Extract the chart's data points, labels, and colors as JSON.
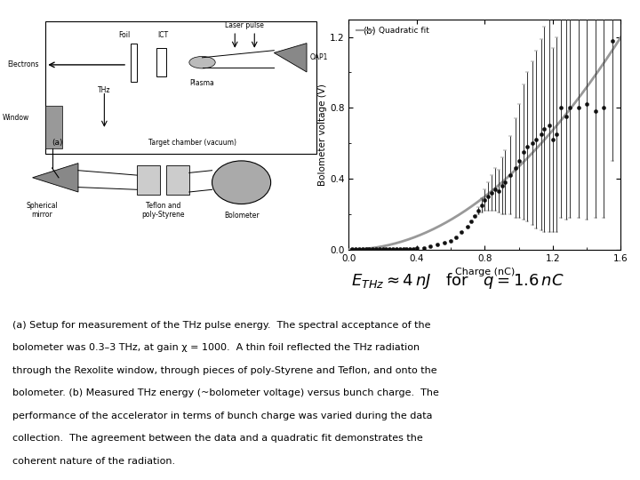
{
  "scatter_x": [
    0.02,
    0.04,
    0.06,
    0.08,
    0.1,
    0.12,
    0.14,
    0.16,
    0.18,
    0.2,
    0.22,
    0.24,
    0.26,
    0.28,
    0.3,
    0.32,
    0.34,
    0.36,
    0.38,
    0.4,
    0.44,
    0.48,
    0.52,
    0.56,
    0.6,
    0.63,
    0.66,
    0.7,
    0.72,
    0.74,
    0.76,
    0.78,
    0.8,
    0.82,
    0.84,
    0.86,
    0.88,
    0.9,
    0.92,
    0.95,
    0.98,
    1.0,
    1.03,
    1.05,
    1.08,
    1.1,
    1.13,
    1.15,
    1.18,
    1.2,
    1.22,
    1.25,
    1.28,
    1.3,
    1.35,
    1.4,
    1.45,
    1.5,
    1.55
  ],
  "scatter_y": [
    0.005,
    0.005,
    0.005,
    0.005,
    0.005,
    0.005,
    0.005,
    0.005,
    0.005,
    0.005,
    0.005,
    0.005,
    0.005,
    0.005,
    0.005,
    0.005,
    0.005,
    0.005,
    0.005,
    0.01,
    0.01,
    0.02,
    0.03,
    0.04,
    0.05,
    0.07,
    0.1,
    0.13,
    0.16,
    0.19,
    0.22,
    0.25,
    0.28,
    0.3,
    0.32,
    0.34,
    0.33,
    0.36,
    0.38,
    0.42,
    0.46,
    0.5,
    0.55,
    0.58,
    0.6,
    0.62,
    0.65,
    0.68,
    0.7,
    0.62,
    0.65,
    0.8,
    0.75,
    0.8,
    0.8,
    0.82,
    0.78,
    0.8,
    1.18
  ],
  "scatter_yerr": [
    0.0,
    0.0,
    0.0,
    0.0,
    0.0,
    0.0,
    0.0,
    0.0,
    0.0,
    0.0,
    0.0,
    0.0,
    0.0,
    0.0,
    0.0,
    0.0,
    0.0,
    0.0,
    0.0,
    0.0,
    0.0,
    0.0,
    0.0,
    0.0,
    0.0,
    0.0,
    0.0,
    0.0,
    0.0,
    0.0,
    0.02,
    0.04,
    0.06,
    0.08,
    0.1,
    0.12,
    0.12,
    0.16,
    0.18,
    0.22,
    0.28,
    0.32,
    0.38,
    0.42,
    0.46,
    0.5,
    0.54,
    0.58,
    0.6,
    0.52,
    0.55,
    0.62,
    0.58,
    0.62,
    0.62,
    0.65,
    0.6,
    0.62,
    0.68
  ],
  "fit_coeff": 0.468,
  "xlim": [
    0,
    1.6
  ],
  "ylim": [
    0,
    1.3
  ],
  "xticks": [
    0,
    0.4,
    0.8,
    1.2,
    1.6
  ],
  "yticks": [
    0,
    0.4,
    0.8,
    1.2
  ],
  "xlabel": "Charge (nC)",
  "ylabel": "Bolometer voltage (V)",
  "scatter_color": "#111111",
  "fit_color": "#999999",
  "bg_color": "#ffffff",
  "caption_lines": [
    "(a) Setup for measurement of the THz pulse energy.  The spectral acceptance of the",
    "bolometer was 0.3–3 THz, at gain χ = 1000.  A thin foil reflected the THz radiation",
    "through the Rexolite window, through pieces of poly-Styrene and Teflon, and onto the",
    "bolometer. (b) Measured THz energy (~bolometer voltage) versus bunch charge.  The",
    "performance of the accelerator in terms of bunch charge was varied during the data",
    "collection.  The agreement between the data and a quadratic fit demonstrates the",
    "coherent nature of the radiation."
  ]
}
